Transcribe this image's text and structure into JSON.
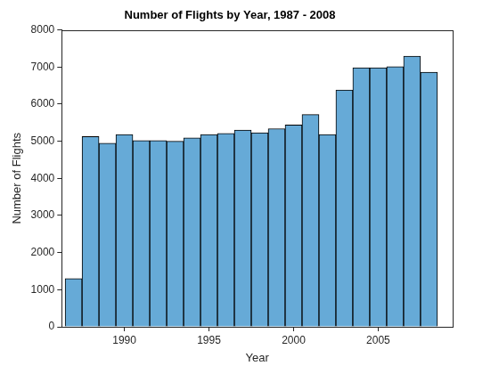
{
  "chart_data": {
    "type": "histogram",
    "title": "Number of Flights by Year, 1987 - 2008",
    "x_label": "Year",
    "y_label": "Number of Flights",
    "bins": [
      1986.5,
      1987.5,
      1988.5,
      1989.5,
      1990.5,
      1991.5,
      1992.5,
      1993.5,
      1994.5,
      1995.5,
      1996.5,
      1997.5,
      1998.5,
      1999.5,
      2000.5,
      2001.5,
      2002.5,
      2003.5,
      2004.5,
      2005.5,
      2006.5,
      2007.5,
      2008.5
    ],
    "values": [
      1300,
      5130,
      4950,
      5180,
      5020,
      5020,
      5000,
      5090,
      5180,
      5210,
      5300,
      5230,
      5340,
      5440,
      5720,
      5180,
      6380,
      6980,
      6980,
      7010,
      7290,
      6860
    ],
    "color": "#66aad7",
    "xlim": [
      1986.3,
      2009.4
    ],
    "xticks": [
      1990,
      1995,
      2000,
      2005
    ],
    "ylim": [
      0,
      8000
    ],
    "yticks": [
      0,
      1000,
      2000,
      3000,
      4000,
      5000,
      6000,
      7000,
      8000
    ],
    "grid": false
  }
}
